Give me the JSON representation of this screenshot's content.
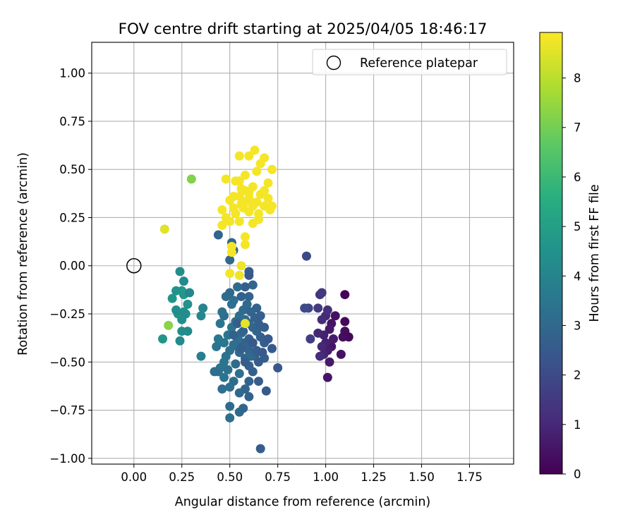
{
  "chart_data": {
    "type": "scatter",
    "title": "FOV centre drift starting at 2025/04/05 18:46:17",
    "xlabel": "Angular distance from reference (arcmin)",
    "ylabel": "Rotation from reference (arcmin)",
    "xlim": [
      -0.22,
      1.98
    ],
    "ylim": [
      -1.03,
      1.16
    ],
    "xticks": [
      "0.00",
      "0.25",
      "0.50",
      "0.75",
      "1.00",
      "1.25",
      "1.50",
      "1.75"
    ],
    "yticks": [
      "1.00",
      "0.75",
      "0.50",
      "0.25",
      "0.00",
      "−0.25",
      "−0.50",
      "−0.75",
      "−1.00"
    ],
    "grid": true,
    "legend": {
      "position": "top-right",
      "entries": [
        {
          "label": "Reference platepar",
          "marker": "open-circle"
        }
      ]
    },
    "reference_point": {
      "x": 0.0,
      "y": 0.0
    },
    "colorbar": {
      "label": "Hours from first FF file",
      "range": [
        0,
        8.92
      ],
      "ticks": [
        "0",
        "1",
        "2",
        "3",
        "4",
        "5",
        "6",
        "7",
        "8"
      ],
      "colormap": "viridis"
    },
    "points": [
      [
        1.1,
        -0.15,
        0.1
      ],
      [
        1.1,
        -0.29,
        0.2
      ],
      [
        1.1,
        -0.34,
        0.3
      ],
      [
        1.12,
        -0.37,
        0.2
      ],
      [
        1.09,
        -0.37,
        0.3
      ],
      [
        1.08,
        -0.46,
        0.4
      ],
      [
        1.03,
        -0.42,
        0.5
      ],
      [
        1.02,
        -0.5,
        0.6
      ],
      [
        1.01,
        -0.44,
        0.7
      ],
      [
        1.0,
        -0.4,
        0.8
      ],
      [
        0.99,
        -0.46,
        0.9
      ],
      [
        0.98,
        -0.42,
        1.0
      ],
      [
        0.97,
        -0.47,
        1.1
      ],
      [
        1.05,
        -0.26,
        0.4
      ],
      [
        1.03,
        -0.3,
        0.5
      ],
      [
        1.02,
        -0.33,
        0.6
      ],
      [
        1.04,
        -0.38,
        0.7
      ],
      [
        0.99,
        -0.36,
        0.8
      ],
      [
        0.96,
        -0.35,
        0.9
      ],
      [
        1.0,
        -0.26,
        1.0
      ],
      [
        0.98,
        -0.28,
        1.1
      ],
      [
        1.01,
        -0.23,
        1.2
      ],
      [
        0.97,
        -0.15,
        1.3
      ],
      [
        0.98,
        -0.14,
        1.4
      ],
      [
        1.01,
        -0.58,
        0.5
      ],
      [
        0.96,
        -0.22,
        1.5
      ],
      [
        0.92,
        -0.38,
        1.6
      ],
      [
        0.91,
        -0.22,
        1.8
      ],
      [
        0.89,
        -0.22,
        2.0
      ],
      [
        0.9,
        0.05,
        2.0
      ],
      [
        0.75,
        -0.53,
        2.4
      ],
      [
        0.69,
        -0.65,
        2.5
      ],
      [
        0.65,
        -0.6,
        2.6
      ],
      [
        0.66,
        -0.95,
        2.6
      ],
      [
        0.62,
        -0.55,
        2.7
      ],
      [
        0.6,
        -0.52,
        2.8
      ],
      [
        0.58,
        -0.48,
        2.9
      ],
      [
        0.55,
        -0.45,
        3.0
      ],
      [
        0.54,
        -0.42,
        3.0
      ],
      [
        0.57,
        -0.4,
        2.8
      ],
      [
        0.6,
        -0.44,
        2.9
      ],
      [
        0.63,
        -0.47,
        2.7
      ],
      [
        0.65,
        -0.5,
        2.6
      ],
      [
        0.67,
        -0.45,
        2.5
      ],
      [
        0.68,
        -0.4,
        2.6
      ],
      [
        0.66,
        -0.37,
        2.7
      ],
      [
        0.64,
        -0.34,
        2.8
      ],
      [
        0.62,
        -0.32,
        2.9
      ],
      [
        0.6,
        -0.3,
        3.0
      ],
      [
        0.58,
        -0.28,
        3.1
      ],
      [
        0.56,
        -0.35,
        3.1
      ],
      [
        0.54,
        -0.38,
        3.2
      ],
      [
        0.52,
        -0.41,
        3.2
      ],
      [
        0.5,
        -0.44,
        3.3
      ],
      [
        0.48,
        -0.47,
        3.3
      ],
      [
        0.47,
        -0.5,
        3.4
      ],
      [
        0.45,
        -0.53,
        3.4
      ],
      [
        0.47,
        -0.4,
        3.5
      ],
      [
        0.49,
        -0.36,
        3.5
      ],
      [
        0.51,
        -0.32,
        3.4
      ],
      [
        0.53,
        -0.29,
        3.3
      ],
      [
        0.55,
        -0.26,
        3.2
      ],
      [
        0.57,
        -0.23,
        3.1
      ],
      [
        0.59,
        -0.2,
        3.0
      ],
      [
        0.61,
        -0.24,
        2.9
      ],
      [
        0.63,
        -0.27,
        2.8
      ],
      [
        0.65,
        -0.3,
        2.7
      ],
      [
        0.6,
        -0.6,
        2.8
      ],
      [
        0.58,
        -0.64,
        2.9
      ],
      [
        0.55,
        -0.66,
        3.0
      ],
      [
        0.52,
        -0.6,
        3.1
      ],
      [
        0.5,
        -0.63,
        3.2
      ],
      [
        0.46,
        -0.64,
        3.2
      ],
      [
        0.44,
        -0.55,
        3.3
      ],
      [
        0.42,
        -0.55,
        3.2
      ],
      [
        0.5,
        -0.73,
        3.1
      ],
      [
        0.5,
        -0.79,
        3.2
      ],
      [
        0.55,
        -0.76,
        3.0
      ],
      [
        0.57,
        -0.74,
        2.9
      ],
      [
        0.6,
        -0.68,
        2.8
      ],
      [
        0.6,
        -0.03,
        2.6
      ],
      [
        0.6,
        -0.05,
        2.5
      ],
      [
        0.58,
        -0.11,
        2.7
      ],
      [
        0.56,
        -0.16,
        2.8
      ],
      [
        0.6,
        -0.16,
        2.9
      ],
      [
        0.5,
        -0.14,
        3.0
      ],
      [
        0.48,
        -0.16,
        3.1
      ],
      [
        0.47,
        -0.26,
        3.2
      ],
      [
        0.46,
        -0.24,
        3.3
      ],
      [
        0.45,
        -0.3,
        3.4
      ],
      [
        0.44,
        -0.38,
        3.5
      ],
      [
        0.43,
        -0.42,
        3.4
      ],
      [
        0.51,
        -0.2,
        3.3
      ],
      [
        0.52,
        -0.18,
        3.2
      ],
      [
        0.54,
        -0.11,
        3.1
      ],
      [
        0.62,
        -0.1,
        2.9
      ],
      [
        0.64,
        -0.22,
        2.8
      ],
      [
        0.66,
        -0.26,
        2.7
      ],
      [
        0.68,
        -0.32,
        2.6
      ],
      [
        0.7,
        -0.38,
        2.5
      ],
      [
        0.72,
        -0.43,
        2.5
      ],
      [
        0.68,
        -0.48,
        2.6
      ],
      [
        0.6,
        -0.38,
        2.7
      ],
      [
        0.57,
        -0.34,
        2.8
      ],
      [
        0.59,
        -0.42,
        2.9
      ],
      [
        0.61,
        -0.47,
        3.0
      ],
      [
        0.53,
        -0.51,
        3.1
      ],
      [
        0.55,
        -0.56,
        3.2
      ],
      [
        0.49,
        -0.54,
        3.3
      ],
      [
        0.47,
        -0.58,
        3.4
      ],
      [
        0.5,
        0.03,
        3.0
      ],
      [
        0.51,
        0.12,
        3.0
      ],
      [
        0.44,
        0.16,
        2.9
      ],
      [
        0.52,
        0.08,
        3.1
      ],
      [
        0.52,
        -0.36,
        2.7
      ],
      [
        0.54,
        -0.3,
        2.6
      ],
      [
        0.56,
        -0.43,
        2.7
      ],
      [
        0.58,
        -0.5,
        2.6
      ],
      [
        0.62,
        -0.4,
        2.5
      ],
      [
        0.64,
        -0.44,
        2.6
      ],
      [
        0.36,
        -0.22,
        4.0
      ],
      [
        0.35,
        -0.26,
        4.1
      ],
      [
        0.35,
        -0.47,
        3.8
      ],
      [
        0.28,
        -0.34,
        4.2
      ],
      [
        0.25,
        -0.34,
        4.3
      ],
      [
        0.24,
        -0.39,
        4.2
      ],
      [
        0.25,
        -0.28,
        4.4
      ],
      [
        0.23,
        -0.25,
        4.5
      ],
      [
        0.22,
        -0.23,
        4.3
      ],
      [
        0.26,
        -0.24,
        4.4
      ],
      [
        0.28,
        -0.2,
        4.5
      ],
      [
        0.26,
        -0.15,
        4.6
      ],
      [
        0.25,
        -0.13,
        4.7
      ],
      [
        0.22,
        -0.13,
        4.5
      ],
      [
        0.2,
        -0.17,
        4.6
      ],
      [
        0.24,
        -0.03,
        4.3
      ],
      [
        0.26,
        -0.08,
        4.2
      ],
      [
        0.29,
        -0.14,
        4.1
      ],
      [
        0.27,
        -0.25,
        4.3
      ],
      [
        0.15,
        -0.38,
        4.6
      ],
      [
        0.3,
        0.45,
        7.2
      ],
      [
        0.18,
        -0.31,
        7.3
      ],
      [
        0.16,
        0.19,
        8.5
      ],
      [
        0.58,
        -0.3,
        8.6
      ],
      [
        0.55,
        -0.05,
        8.7
      ],
      [
        0.56,
        0.0,
        8.7
      ],
      [
        0.5,
        -0.04,
        8.8
      ],
      [
        0.51,
        0.07,
        8.8
      ],
      [
        0.51,
        0.1,
        8.8
      ],
      [
        0.58,
        0.11,
        8.8
      ],
      [
        0.58,
        0.15,
        8.8
      ],
      [
        0.46,
        0.21,
        8.8
      ],
      [
        0.48,
        0.25,
        8.8
      ],
      [
        0.55,
        0.23,
        8.8
      ],
      [
        0.62,
        0.22,
        8.8
      ],
      [
        0.65,
        0.24,
        8.8
      ],
      [
        0.6,
        0.28,
        8.8
      ],
      [
        0.57,
        0.3,
        8.8
      ],
      [
        0.52,
        0.3,
        8.8
      ],
      [
        0.46,
        0.29,
        8.8
      ],
      [
        0.5,
        0.34,
        8.8
      ],
      [
        0.55,
        0.36,
        8.8
      ],
      [
        0.6,
        0.38,
        8.8
      ],
      [
        0.64,
        0.33,
        8.8
      ],
      [
        0.68,
        0.31,
        8.8
      ],
      [
        0.71,
        0.29,
        8.8
      ],
      [
        0.72,
        0.31,
        8.8
      ],
      [
        0.7,
        0.35,
        8.8
      ],
      [
        0.68,
        0.39,
        8.8
      ],
      [
        0.66,
        0.37,
        8.8
      ],
      [
        0.62,
        0.41,
        8.8
      ],
      [
        0.58,
        0.39,
        8.8
      ],
      [
        0.56,
        0.4,
        8.8
      ],
      [
        0.55,
        0.44,
        8.8
      ],
      [
        0.53,
        0.44,
        8.8
      ],
      [
        0.58,
        0.47,
        8.8
      ],
      [
        0.64,
        0.49,
        8.8
      ],
      [
        0.7,
        0.43,
        8.8
      ],
      [
        0.72,
        0.5,
        8.8
      ],
      [
        0.66,
        0.53,
        8.8
      ],
      [
        0.68,
        0.56,
        8.8
      ],
      [
        0.63,
        0.6,
        8.8
      ],
      [
        0.6,
        0.57,
        8.8
      ],
      [
        0.55,
        0.57,
        8.8
      ],
      [
        0.48,
        0.45,
        8.8
      ],
      [
        0.5,
        0.23,
        8.8
      ],
      [
        0.53,
        0.27,
        8.8
      ],
      [
        0.58,
        0.33,
        8.8
      ],
      [
        0.62,
        0.31,
        8.8
      ],
      [
        0.6,
        0.35,
        8.8
      ],
      [
        0.65,
        0.27,
        8.8
      ],
      [
        0.56,
        0.32,
        8.8
      ],
      [
        0.52,
        0.36,
        8.8
      ]
    ]
  }
}
